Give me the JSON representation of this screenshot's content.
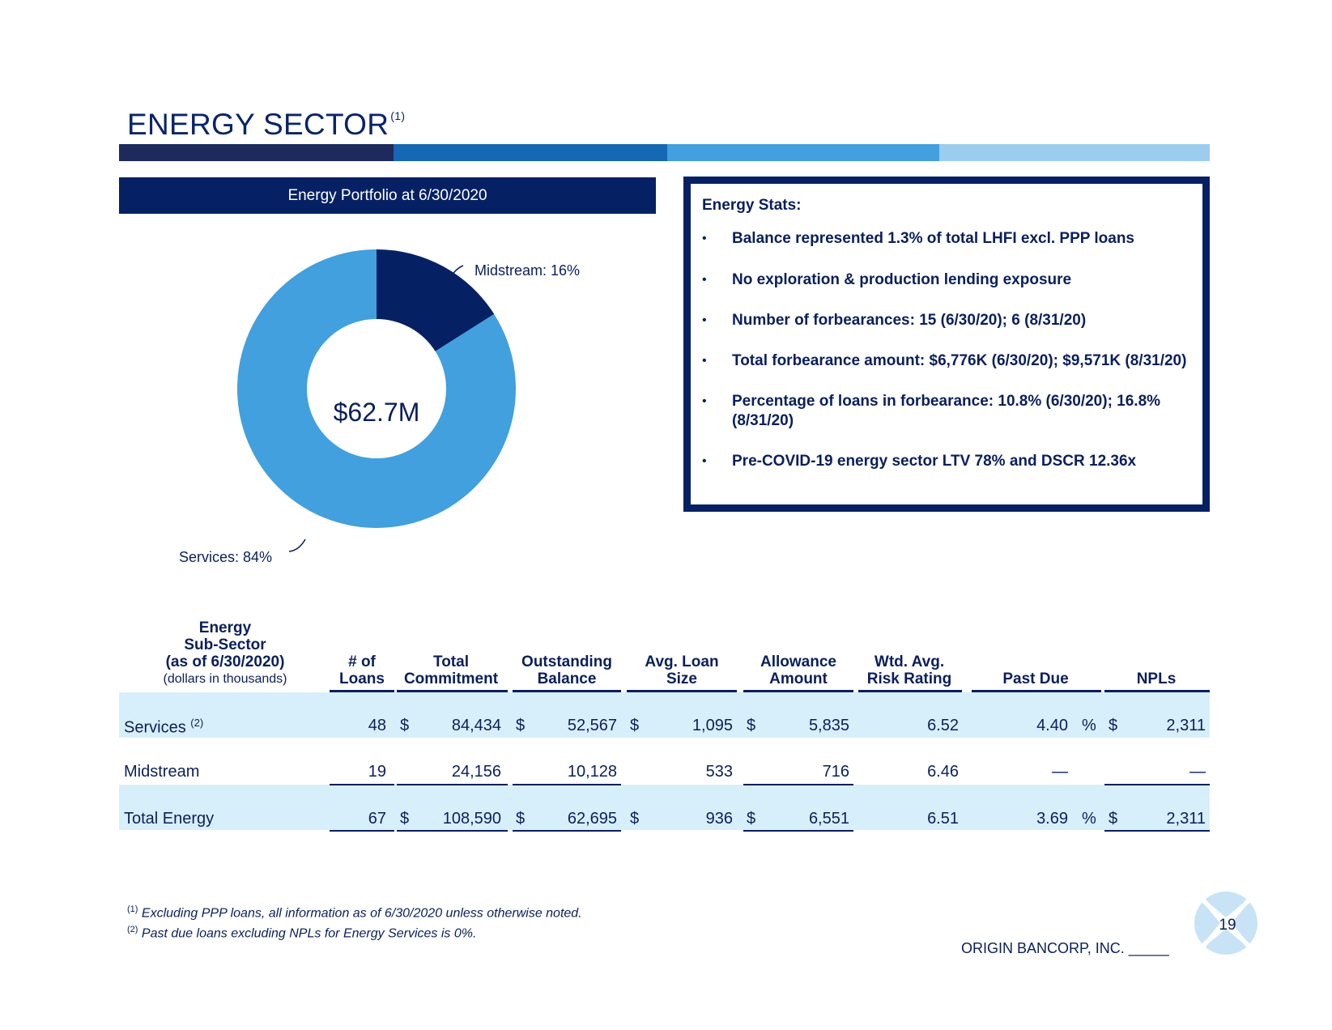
{
  "slide": {
    "title": "ENERGY SECTOR",
    "title_note": "(1)",
    "colors": {
      "navy": "#062163",
      "mid_blue": "#1667b4",
      "light_blue": "#41a0dd",
      "pale_blue": "#9ccdee",
      "band": "#d7effb"
    }
  },
  "chart_section": {
    "header": "Energy Portfolio at 6/30/2020",
    "center_label": "$62.7M"
  },
  "chart_data": {
    "type": "pie",
    "title": "Energy Portfolio at 6/30/2020",
    "center_text": "$62.7M",
    "categories": [
      "Midstream",
      "Services"
    ],
    "values": [
      16,
      84
    ],
    "unit": "%",
    "colors": [
      "#062163",
      "#41a0dd"
    ],
    "labels": [
      "Midstream: 16%",
      "Services: 84%"
    ]
  },
  "stats": {
    "title": "Energy Stats:",
    "bullet": "•",
    "items": [
      "Balance represented 1.3% of total LHFI excl. PPP loans",
      "No exploration & production lending exposure",
      "Number of forbearances: 15 (6/30/20); 6 (8/31/20)",
      "Total forbearance amount: $6,776K (6/30/20); $9,571K (8/31/20)",
      "Percentage of loans in forbearance: 10.8% (6/30/20); 16.8% (8/31/20)",
      "Pre-COVID-19 energy sector LTV 78% and DSCR 12.36x"
    ]
  },
  "table": {
    "header": {
      "sub_sector_line1": "Energy",
      "sub_sector_line2": "Sub-Sector",
      "sub_sector_line3": "(as of 6/30/2020)",
      "sub_sector_note": "(dollars in thousands)",
      "loans_line1": "# of",
      "loans_line2": "Loans",
      "commit_line1": "Total",
      "commit_line2": "Commitment",
      "outstanding_line1": "Outstanding",
      "outstanding_line2": "Balance",
      "avg_line1": "Avg. Loan",
      "avg_line2": "Size",
      "allow_line1": "Allowance",
      "allow_line2": "Amount",
      "risk_line1": "Wtd. Avg.",
      "risk_line2": "Risk Rating",
      "past_due": "Past Due",
      "npls": "NPLs"
    },
    "rows": [
      {
        "name": "Services",
        "note": "(2)",
        "loans": "48",
        "commit_sym": "$",
        "commit": "84,434",
        "out_sym": "$",
        "out": "52,567",
        "avg_sym": "$",
        "avg": "1,095",
        "allow_sym": "$",
        "allow": "5,835",
        "risk": "6.52",
        "past_due": "4.40",
        "pct": "%",
        "npl_sym": "$",
        "npl": "2,311"
      },
      {
        "name": "Midstream",
        "note": "",
        "loans": "19",
        "commit_sym": "",
        "commit": "24,156",
        "out_sym": "",
        "out": "10,128",
        "avg_sym": "",
        "avg": "533",
        "allow_sym": "",
        "allow": "716",
        "risk": "6.46",
        "past_due": "—",
        "pct": "",
        "npl_sym": "",
        "npl": "—"
      },
      {
        "name": "Total Energy",
        "note": "",
        "loans": "67",
        "commit_sym": "$",
        "commit": "108,590",
        "out_sym": "$",
        "out": "62,695",
        "avg_sym": "$",
        "avg": "936",
        "allow_sym": "$",
        "allow": "6,551",
        "risk": "6.51",
        "past_due": "3.69",
        "pct": "%",
        "npl_sym": "$",
        "npl": "2,311"
      }
    ]
  },
  "footnotes": {
    "note1_mark": "(1)",
    "note1": "Excluding PPP loans, all information as of 6/30/2020 unless otherwise noted.",
    "note2_mark": "(2)",
    "note2": "Past due loans excluding NPLs for Energy Services is 0%."
  },
  "footer": {
    "company": "ORIGIN BANCORP, INC. _____",
    "page_number": "19"
  }
}
